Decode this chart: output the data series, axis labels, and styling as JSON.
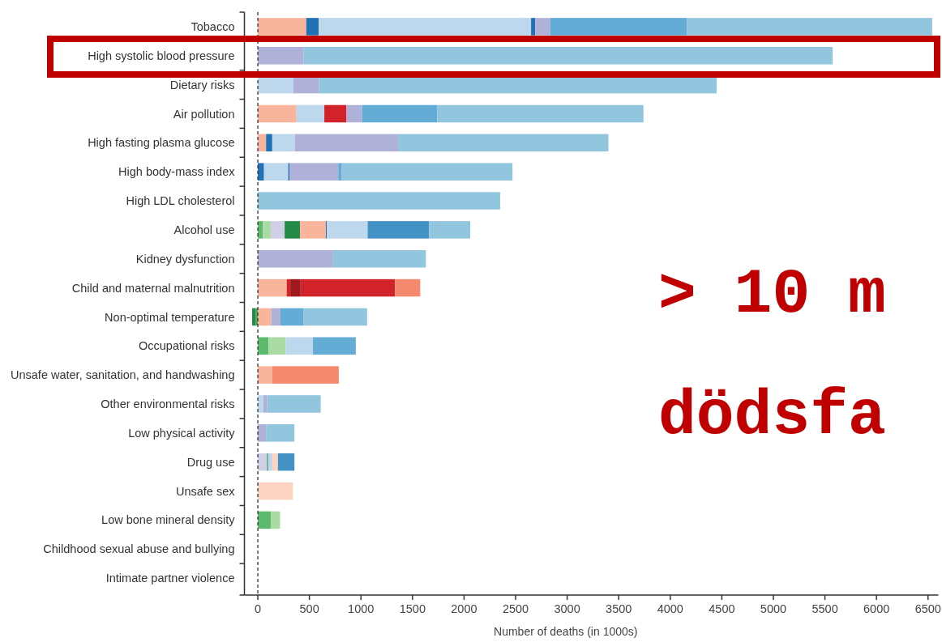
{
  "chart_data": {
    "type": "bar",
    "orientation": "horizontal",
    "stacked": true,
    "xlabel": "Number of deaths (in 1000s)",
    "categories": [
      "Tobacco",
      "High systolic blood pressure",
      "Dietary risks",
      "Air pollution",
      "High fasting plasma glucose",
      "High body-mass index",
      "High LDL cholesterol",
      "Alcohol use",
      "Kidney dysfunction",
      "Child and maternal malnutrition",
      "Non-optimal temperature",
      "Occupational risks",
      "Unsafe water, sanitation, and handwashing",
      "Other environmental risks",
      "Low physical activity",
      "Drug use",
      "Unsafe sex",
      "Low bone mineral density",
      "Childhood sexual abuse and bullying",
      "Intimate partner violence"
    ],
    "xlim": [
      -130,
      6600
    ],
    "xticks": [
      0,
      500,
      1000,
      1500,
      2000,
      2500,
      3000,
      3500,
      4000,
      4500,
      5000,
      5500,
      6000,
      6500
    ],
    "ref_lines": [
      {
        "axis": "x",
        "value": 0,
        "line_style": "dashed",
        "color": "#333333"
      }
    ],
    "annotations": [
      "> 10 m",
      "dödsfa"
    ],
    "series": [
      {
        "values": [
          470,
          445,
          345,
          375,
          80,
          60,
          2350,
          50,
          730,
          280,
          -20,
          105,
          140,
          55,
          80,
          90,
          340,
          125,
          null,
          null
        ],
        "colors": [
          "#f9b59c",
          "#b0b1d8",
          "#bdd7ec",
          "#f9b59c",
          "#f9b59c",
          "#2171b5",
          "#92c5de",
          "#5dba6c",
          "#b0b1d8",
          "#f9b59c",
          "#41ab5d",
          "#5dba6c",
          "#f9b59c",
          "#bdd7ec",
          "#b0b1d8",
          "#cfcfe6",
          "#fcd3c1",
          "#5dba6c",
          null,
          null
        ]
      },
      {
        "values": [
          120,
          5130,
          250,
          270,
          60,
          235,
          null,
          75,
          900,
          35,
          -35,
          165,
          645,
          35,
          275,
          10,
          null,
          90,
          null,
          null
        ],
        "colors": [
          "#2171b5",
          "#92c5de",
          "#b0b1d8",
          "#bdd7ec",
          "#2171b5",
          "#bdd7ec",
          null,
          "#a9dba2",
          "#92c5de",
          "#d2232a",
          "#238b45",
          "#a9dba2",
          "#f4896e",
          "#b0b1d8",
          "#92c5de",
          "#238b45",
          null,
          "#a9dba2",
          null,
          null
        ]
      },
      {
        "values": [
          2060,
          null,
          3855,
          215,
          220,
          15,
          null,
          135,
          null,
          100,
          130,
          265,
          null,
          520,
          null,
          40,
          null,
          null,
          null,
          null
        ],
        "colors": [
          "#bdd7ec",
          null,
          "#92c5de",
          "#d2232a",
          "#bdd7ec",
          "#2171b5",
          null,
          "#cfcfe6",
          null,
          "#9e1a1e",
          "#f9b59c",
          "#bdd7ec",
          null,
          "#92c5de",
          null,
          "#bdd7ec",
          null,
          null,
          null,
          null
        ]
      },
      {
        "values": [
          40,
          null,
          null,
          150,
          1000,
          470,
          null,
          150,
          null,
          915,
          90,
          415,
          null,
          null,
          null,
          55,
          null,
          null,
          null,
          null
        ],
        "colors": [
          "#2171b5",
          null,
          null,
          "#b0b1d8",
          "#b0b1d8",
          "#b0b1d8",
          null,
          "#238b45",
          null,
          "#d2232a",
          "#b0b1d8",
          "#62acd6",
          null,
          null,
          null,
          "#fcd3c1",
          null,
          null,
          null,
          null
        ]
      },
      {
        "values": [
          145,
          null,
          null,
          730,
          2040,
          30,
          null,
          250,
          null,
          245,
          225,
          null,
          null,
          null,
          null,
          160,
          null,
          null,
          null,
          null
        ],
        "colors": [
          "#b0b1d8",
          null,
          null,
          "#62acd6",
          "#92c5de",
          "#62acd6",
          null,
          "#f9b59c",
          null,
          "#f4896e",
          "#62acd6",
          null,
          null,
          null,
          null,
          "#4292c6",
          null,
          null,
          null,
          null
        ]
      },
      {
        "values": [
          1325,
          null,
          null,
          2000,
          null,
          1660,
          null,
          10,
          null,
          null,
          615,
          null,
          null,
          null,
          null,
          null,
          null,
          null,
          null,
          null
        ],
        "colors": [
          "#62acd6",
          null,
          null,
          "#92c5de",
          null,
          "#92c5de",
          null,
          "#2171b5",
          null,
          null,
          "#92c5de",
          null,
          null,
          null,
          null,
          null,
          null,
          null,
          null,
          null
        ]
      },
      {
        "values": [
          2380,
          null,
          null,
          null,
          null,
          null,
          null,
          395,
          null,
          null,
          null,
          null,
          null,
          null,
          null,
          null,
          null,
          null,
          null,
          null
        ],
        "colors": [
          "#92c5de",
          null,
          null,
          null,
          null,
          null,
          null,
          "#bdd7ec",
          null,
          null,
          null,
          null,
          null,
          null,
          null,
          null,
          null,
          null,
          null,
          null
        ]
      },
      {
        "values": [
          null,
          null,
          null,
          null,
          null,
          null,
          null,
          595,
          null,
          null,
          null,
          null,
          null,
          null,
          null,
          null,
          null,
          null,
          null,
          null
        ],
        "colors": [
          null,
          null,
          null,
          null,
          null,
          null,
          null,
          "#4292c6",
          null,
          null,
          null,
          null,
          null,
          null,
          null,
          null,
          null,
          null,
          null,
          null
        ]
      },
      {
        "values": [
          null,
          null,
          null,
          null,
          null,
          null,
          null,
          400,
          null,
          null,
          null,
          null,
          null,
          null,
          null,
          null,
          null,
          null,
          null,
          null
        ],
        "colors": [
          null,
          null,
          null,
          null,
          null,
          null,
          null,
          "#92c5de",
          null,
          null,
          null,
          null,
          null,
          null,
          null,
          null,
          null,
          null,
          null,
          null
        ]
      }
    ]
  }
}
